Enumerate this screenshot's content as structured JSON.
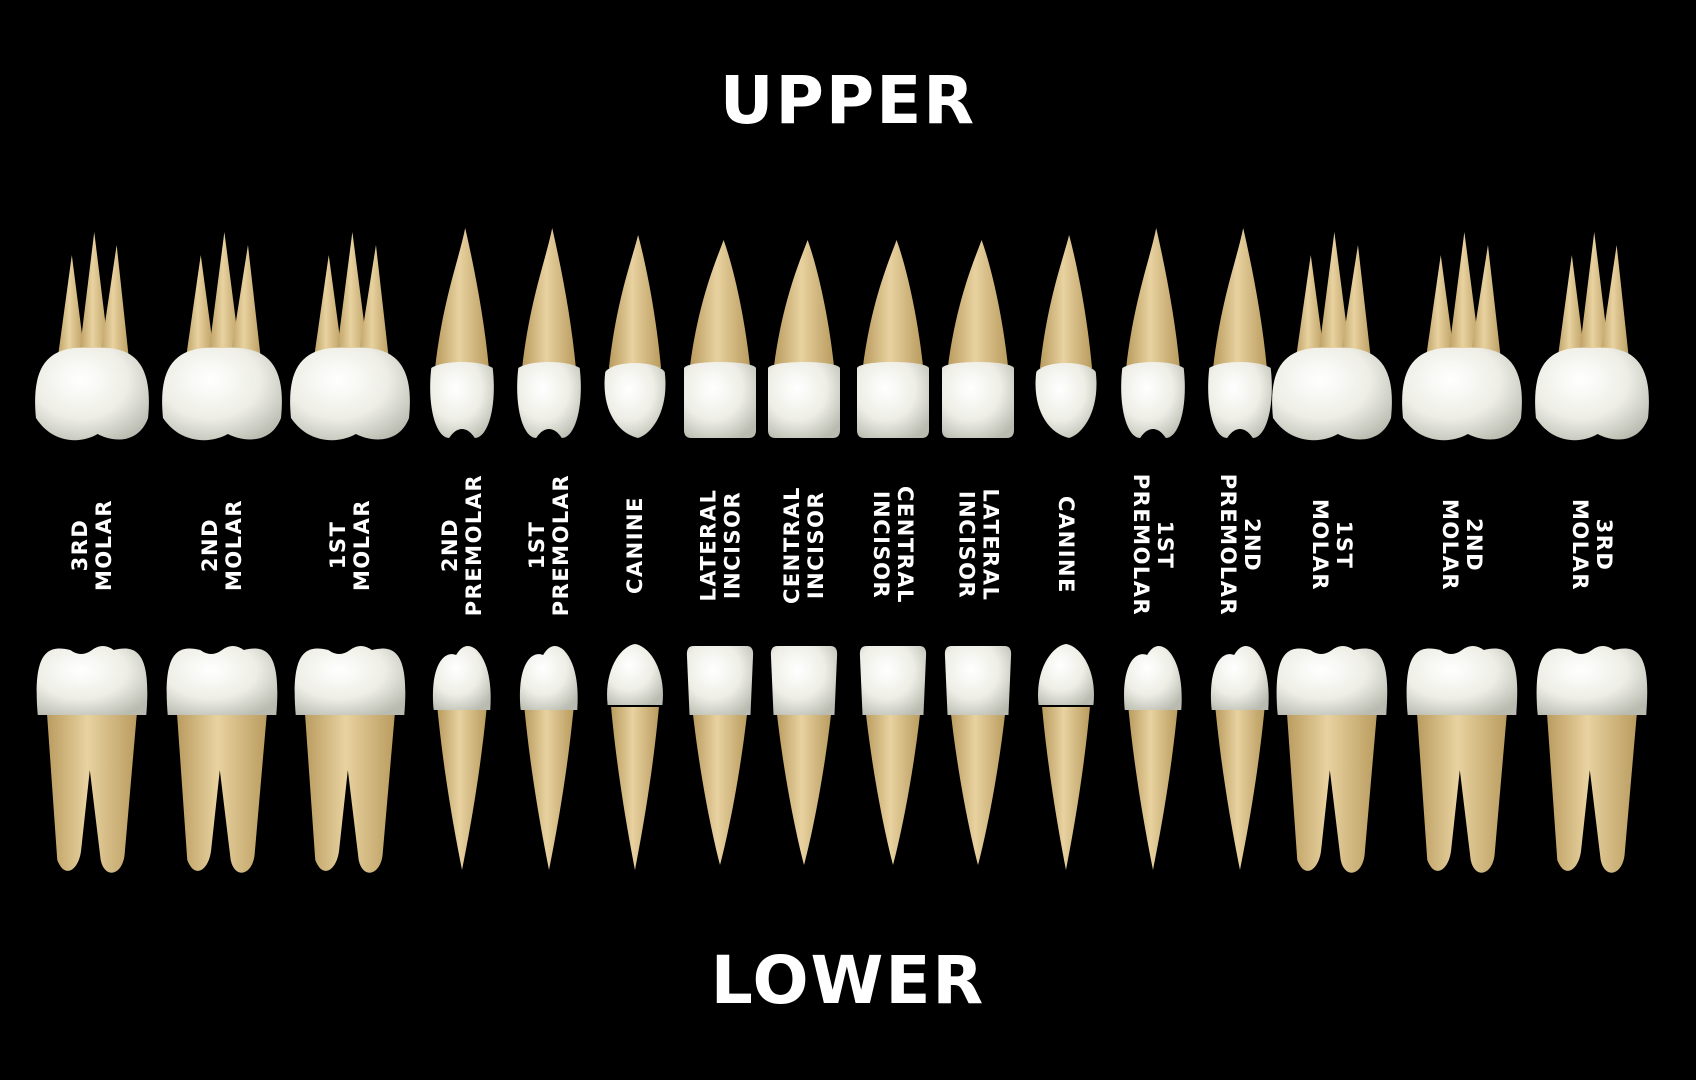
{
  "headings": {
    "upper": "UPPER",
    "lower": "LOWER"
  },
  "labels": [
    {
      "line1": "3RD",
      "line2": "MOLAR",
      "rotation": "ccw"
    },
    {
      "line1": "2ND",
      "line2": "MOLAR",
      "rotation": "ccw"
    },
    {
      "line1": "1ST",
      "line2": "MOLAR",
      "rotation": "ccw"
    },
    {
      "line1": "2ND",
      "line2": "PREMOLAR",
      "rotation": "ccw"
    },
    {
      "line1": "1ST",
      "line2": "PREMOLAR",
      "rotation": "ccw"
    },
    {
      "line1": "CANINE",
      "line2": "",
      "rotation": "ccw"
    },
    {
      "line1": "LATERAL",
      "line2": "INCISOR",
      "rotation": "ccw"
    },
    {
      "line1": "CENTRAL",
      "line2": "INCISOR",
      "rotation": "ccw"
    },
    {
      "line1": "CENTRAL",
      "line2": "INCISOR",
      "rotation": "cw"
    },
    {
      "line1": "LATERAL",
      "line2": "INCISOR",
      "rotation": "cw"
    },
    {
      "line1": "CANINE",
      "line2": "",
      "rotation": "cw"
    },
    {
      "line1": "1ST",
      "line2": "PREMOLAR",
      "rotation": "cw"
    },
    {
      "line1": "2ND",
      "line2": "PREMOLAR",
      "rotation": "cw"
    },
    {
      "line1": "1ST",
      "line2": "MOLAR",
      "rotation": "cw"
    },
    {
      "line1": "2ND",
      "line2": "MOLAR",
      "rotation": "cw"
    },
    {
      "line1": "3RD",
      "line2": "MOLAR",
      "rotation": "cw"
    }
  ],
  "teeth_types": [
    "molar",
    "molar",
    "molar",
    "premolar",
    "premolar",
    "canine",
    "incisor",
    "incisor",
    "incisor",
    "incisor",
    "canine",
    "premolar",
    "premolar",
    "molar",
    "molar",
    "molar"
  ],
  "colors": {
    "background": "#000000",
    "text": "#ffffff",
    "enamel": "#eeeee6",
    "enamel_shade": "#c9cbc0",
    "root": "#e2c992",
    "root_shade": "#b99b5e"
  }
}
